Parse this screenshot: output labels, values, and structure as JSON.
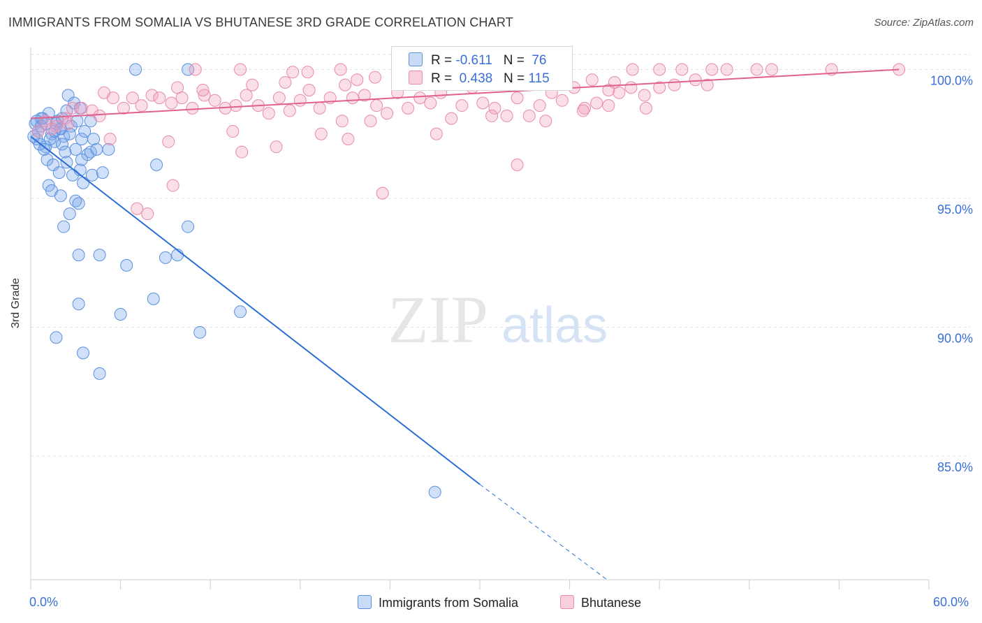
{
  "title": "IMMIGRANTS FROM SOMALIA VS BHUTANESE 3RD GRADE CORRELATION CHART",
  "source": "Source: ZipAtlas.com",
  "watermark": {
    "zip": "ZIP",
    "atlas": "atlas"
  },
  "colors": {
    "blue": "#5b8fe0",
    "blue_fill": "rgba(120,165,235,0.35)",
    "blue_line": "#2a6fd4",
    "pink": "#e88aaa",
    "pink_fill": "rgba(240,160,190,0.35)",
    "pink_line": "#e06090",
    "tick_label": "#3a6fd6",
    "grid": "#e2e2e2"
  },
  "legend": {
    "rows": [
      {
        "r_label": "R = ",
        "r_value": "-0.611",
        "n_label": "N = ",
        "n_value": "76"
      },
      {
        "r_label": "R = ",
        "r_value": "0.438",
        "n_label": "N = ",
        "n_value": "115"
      }
    ]
  },
  "bottom_legend": [
    {
      "label": "Immigrants from Somalia"
    },
    {
      "label": "Bhutanese"
    }
  ],
  "chart_data": {
    "type": "scatter",
    "title": "IMMIGRANTS FROM SOMALIA VS BHUTANESE 3RD GRADE CORRELATION CHART",
    "xlabel": "",
    "ylabel": "3rd Grade",
    "xlim": [
      0,
      60
    ],
    "ylim": [
      80.2,
      100.8
    ],
    "x_tick_labels": [
      "0.0%",
      "60.0%"
    ],
    "y_ticks": [
      85,
      90,
      95,
      100
    ],
    "y_tick_labels": [
      "85.0%",
      "90.0%",
      "95.0%",
      "100.0%"
    ],
    "grid": true,
    "legend_position": "top-center",
    "series": [
      {
        "name": "Immigrants from Somalia",
        "color": "#5b8fe0",
        "trend": {
          "x": [
            0.0,
            30.0
          ],
          "y": [
            97.4,
            83.9
          ],
          "dashed_to": [
            38.5,
            80.2
          ]
        },
        "points": [
          [
            7.0,
            100.0
          ],
          [
            10.5,
            100.0
          ],
          [
            0.3,
            97.9
          ],
          [
            0.5,
            97.6
          ],
          [
            0.8,
            98.1
          ],
          [
            0.4,
            97.3
          ],
          [
            1.0,
            97.0
          ],
          [
            1.2,
            98.3
          ],
          [
            1.4,
            97.5
          ],
          [
            1.6,
            97.2
          ],
          [
            1.8,
            98.0
          ],
          [
            2.0,
            97.7
          ],
          [
            2.2,
            97.4
          ],
          [
            2.4,
            98.4
          ],
          [
            2.5,
            99.0
          ],
          [
            2.7,
            97.8
          ],
          [
            2.9,
            98.7
          ],
          [
            3.1,
            98.0
          ],
          [
            0.6,
            97.1
          ],
          [
            0.9,
            96.9
          ],
          [
            1.3,
            97.3
          ],
          [
            1.7,
            97.9
          ],
          [
            2.1,
            97.1
          ],
          [
            2.3,
            96.8
          ],
          [
            2.6,
            97.5
          ],
          [
            3.0,
            96.9
          ],
          [
            3.4,
            97.3
          ],
          [
            3.6,
            97.6
          ],
          [
            3.8,
            96.7
          ],
          [
            4.0,
            96.8
          ],
          [
            4.2,
            97.3
          ],
          [
            4.4,
            96.9
          ],
          [
            1.1,
            96.5
          ],
          [
            1.5,
            96.3
          ],
          [
            1.9,
            96.0
          ],
          [
            2.4,
            96.4
          ],
          [
            2.8,
            95.9
          ],
          [
            3.3,
            96.1
          ],
          [
            3.5,
            95.6
          ],
          [
            4.1,
            95.9
          ],
          [
            4.8,
            96.0
          ],
          [
            5.2,
            96.9
          ],
          [
            1.2,
            95.5
          ],
          [
            1.4,
            95.3
          ],
          [
            2.0,
            95.1
          ],
          [
            3.0,
            94.9
          ],
          [
            3.2,
            94.8
          ],
          [
            2.6,
            94.4
          ],
          [
            2.2,
            93.9
          ],
          [
            8.4,
            96.3
          ],
          [
            10.5,
            93.9
          ],
          [
            3.2,
            92.8
          ],
          [
            4.6,
            92.8
          ],
          [
            6.4,
            92.4
          ],
          [
            9.0,
            92.7
          ],
          [
            9.8,
            92.8
          ],
          [
            3.2,
            90.9
          ],
          [
            6.0,
            90.5
          ],
          [
            8.2,
            91.1
          ],
          [
            11.3,
            89.8
          ],
          [
            14.0,
            90.6
          ],
          [
            1.7,
            89.6
          ],
          [
            3.5,
            89.0
          ],
          [
            4.6,
            88.2
          ],
          [
            27.0,
            83.6
          ],
          [
            0.7,
            98.1
          ],
          [
            1.6,
            97.6
          ],
          [
            2.1,
            98.1
          ],
          [
            0.2,
            97.4
          ],
          [
            3.3,
            98.5
          ],
          [
            4.0,
            98.0
          ],
          [
            1.0,
            97.9
          ],
          [
            0.4,
            98.0
          ],
          [
            0.7,
            97.8
          ],
          [
            2.0,
            97.7
          ],
          [
            3.4,
            96.5
          ]
        ]
      },
      {
        "name": "Bhutanese",
        "color": "#e88aaa",
        "trend": {
          "x": [
            0.0,
            58.0
          ],
          "y": [
            98.1,
            100.0
          ]
        },
        "points": [
          [
            11.0,
            100.0
          ],
          [
            14.0,
            100.0
          ],
          [
            17.5,
            99.9
          ],
          [
            18.5,
            99.9
          ],
          [
            20.7,
            100.0
          ],
          [
            21.8,
            99.6
          ],
          [
            23.0,
            99.7
          ],
          [
            25.5,
            99.8
          ],
          [
            26.5,
            100.0
          ],
          [
            27.5,
            100.0
          ],
          [
            28.5,
            99.9
          ],
          [
            29.5,
            100.0
          ],
          [
            30.5,
            99.8
          ],
          [
            31.8,
            100.0
          ],
          [
            35.5,
            99.6
          ],
          [
            37.5,
            99.6
          ],
          [
            39.0,
            99.5
          ],
          [
            40.2,
            100.0
          ],
          [
            42.0,
            100.0
          ],
          [
            43.5,
            100.0
          ],
          [
            44.4,
            99.6
          ],
          [
            45.5,
            100.0
          ],
          [
            46.5,
            100.0
          ],
          [
            48.5,
            100.0
          ],
          [
            49.5,
            100.0
          ],
          [
            53.5,
            100.0
          ],
          [
            58.0,
            100.0
          ],
          [
            4.9,
            99.1
          ],
          [
            5.5,
            98.9
          ],
          [
            6.2,
            98.5
          ],
          [
            6.8,
            98.9
          ],
          [
            7.4,
            98.6
          ],
          [
            8.1,
            99.0
          ],
          [
            8.6,
            98.9
          ],
          [
            9.4,
            98.7
          ],
          [
            10.1,
            98.9
          ],
          [
            10.8,
            98.5
          ],
          [
            11.6,
            99.0
          ],
          [
            12.3,
            98.8
          ],
          [
            13.0,
            98.5
          ],
          [
            13.7,
            98.6
          ],
          [
            14.4,
            99.0
          ],
          [
            15.2,
            98.6
          ],
          [
            15.9,
            98.3
          ],
          [
            16.6,
            98.9
          ],
          [
            17.3,
            98.4
          ],
          [
            18.0,
            98.8
          ],
          [
            18.6,
            99.2
          ],
          [
            19.3,
            98.5
          ],
          [
            20.0,
            98.9
          ],
          [
            20.8,
            98.0
          ],
          [
            21.5,
            98.9
          ],
          [
            22.3,
            99.0
          ],
          [
            23.1,
            98.6
          ],
          [
            23.8,
            98.3
          ],
          [
            24.5,
            99.1
          ],
          [
            25.2,
            98.5
          ],
          [
            26.0,
            98.9
          ],
          [
            26.7,
            98.7
          ],
          [
            27.4,
            99.1
          ],
          [
            28.1,
            98.1
          ],
          [
            28.8,
            98.6
          ],
          [
            29.5,
            99.3
          ],
          [
            30.2,
            98.7
          ],
          [
            31.0,
            98.5
          ],
          [
            31.8,
            98.2
          ],
          [
            32.5,
            98.9
          ],
          [
            33.3,
            98.2
          ],
          [
            34.0,
            98.6
          ],
          [
            34.8,
            99.1
          ],
          [
            35.5,
            98.8
          ],
          [
            36.3,
            99.3
          ],
          [
            37.0,
            98.5
          ],
          [
            37.8,
            98.7
          ],
          [
            38.6,
            99.2
          ],
          [
            39.3,
            99.1
          ],
          [
            40.1,
            99.3
          ],
          [
            41.0,
            99.0
          ],
          [
            42.0,
            99.3
          ],
          [
            43.0,
            99.4
          ],
          [
            1.0,
            98.0
          ],
          [
            1.7,
            97.8
          ],
          [
            2.3,
            98.1
          ],
          [
            2.8,
            98.5
          ],
          [
            3.4,
            98.5
          ],
          [
            4.1,
            98.4
          ],
          [
            4.6,
            98.2
          ],
          [
            5.3,
            97.3
          ],
          [
            9.2,
            97.2
          ],
          [
            11.5,
            99.2
          ],
          [
            13.5,
            97.6
          ],
          [
            14.1,
            96.8
          ],
          [
            16.4,
            97.0
          ],
          [
            19.4,
            97.5
          ],
          [
            21.2,
            97.3
          ],
          [
            22.7,
            98.0
          ],
          [
            23.5,
            95.2
          ],
          [
            27.1,
            97.5
          ],
          [
            30.8,
            98.2
          ],
          [
            34.4,
            98.0
          ],
          [
            36.9,
            98.4
          ],
          [
            38.6,
            98.6
          ],
          [
            41.1,
            98.5
          ],
          [
            45.2,
            99.4
          ],
          [
            7.1,
            94.6
          ],
          [
            7.8,
            94.4
          ],
          [
            9.5,
            95.5
          ],
          [
            32.5,
            96.3
          ],
          [
            21.0,
            99.4
          ],
          [
            17.0,
            99.5
          ],
          [
            14.8,
            99.4
          ],
          [
            9.8,
            99.3
          ],
          [
            0.5,
            97.6
          ],
          [
            1.4,
            97.7
          ],
          [
            2.5,
            97.9
          ]
        ]
      }
    ]
  }
}
